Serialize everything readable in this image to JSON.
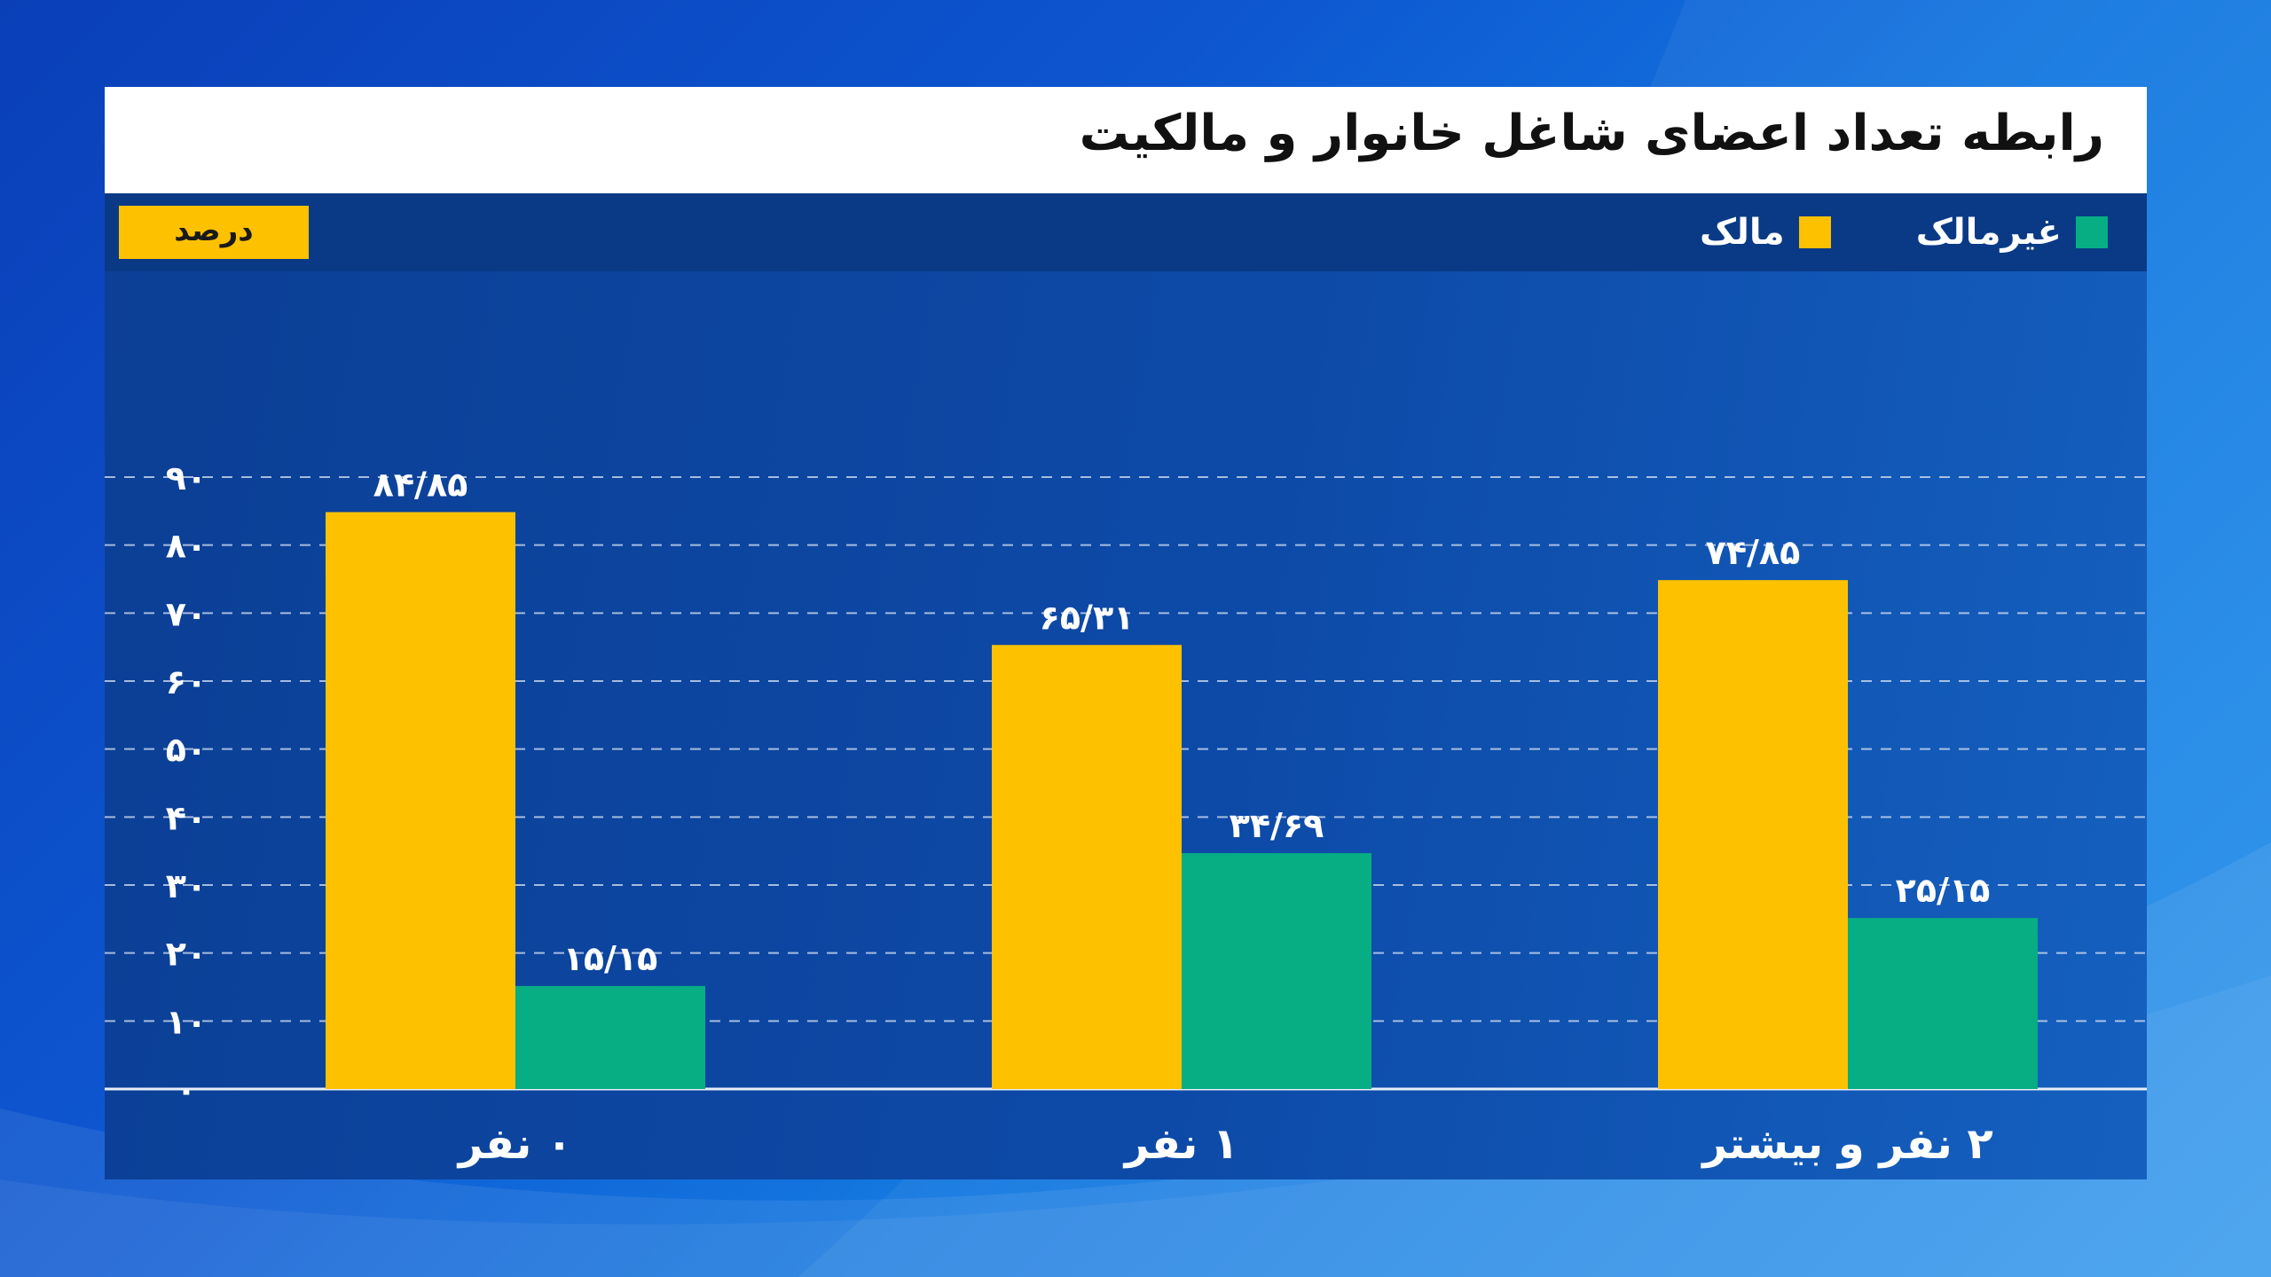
{
  "title": "رابطه تعداد اعضای شاغل خانوار و مالکیت",
  "unit_badge": "درصد",
  "colors": {
    "owner": "#fdc100",
    "non_owner": "#07ad83",
    "unit_badge": "#fdc100"
  },
  "legend": [
    {
      "label": "غیرمالک",
      "color": "#07ad83"
    },
    {
      "label": "مالک",
      "color": "#fdc100"
    }
  ],
  "chart_data": {
    "type": "bar",
    "categories": [
      "۰ نفر",
      "۱ نفر",
      "۲ نفر و بیشتر"
    ],
    "series": [
      {
        "name": "مالک",
        "values": [
          84.85,
          65.31,
          74.85
        ],
        "labels": [
          "۸۴/۸۵",
          "۶۵/۳۱",
          "۷۴/۸۵"
        ]
      },
      {
        "name": "غیرمالک",
        "values": [
          15.15,
          34.69,
          25.15
        ],
        "labels": [
          "۱۵/۱۵",
          "۳۴/۶۹",
          "۲۵/۱۵"
        ]
      }
    ],
    "ylim": [
      0,
      90
    ],
    "yticks": [
      0,
      10,
      20,
      30,
      40,
      50,
      60,
      70,
      80,
      90
    ],
    "ytick_labels": [
      "۰",
      "۱۰",
      "۲۰",
      "۳۰",
      "۴۰",
      "۵۰",
      "۶۰",
      "۷۰",
      "۸۰",
      "۹۰"
    ],
    "grid": true,
    "legend_position": "top-right"
  }
}
